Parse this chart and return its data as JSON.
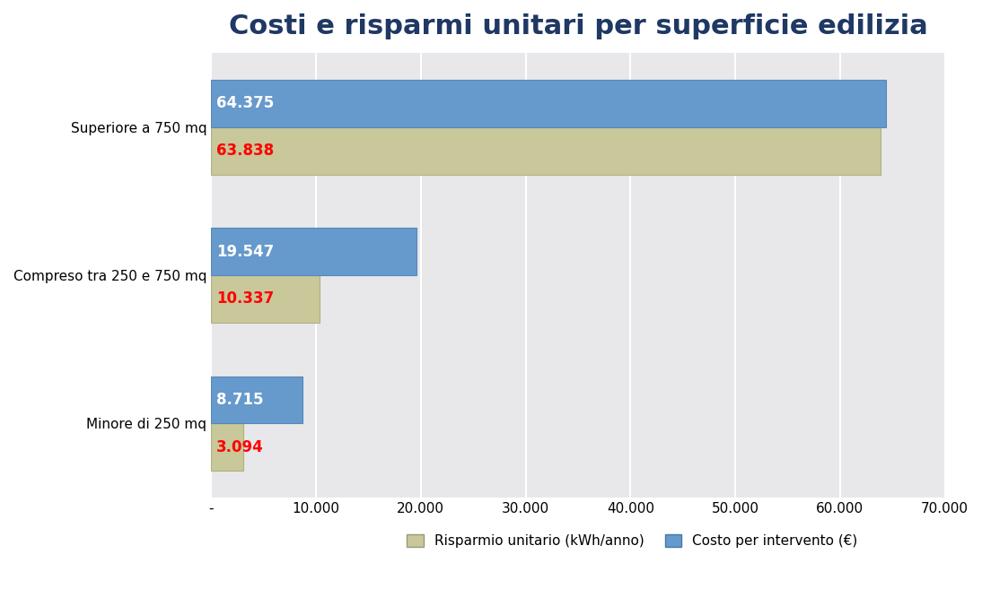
{
  "title": "Costi e risparmi unitari per superficie edilizia",
  "categories": [
    "Superiore a 750 mq",
    "Compreso tra 250 e 750 mq",
    "Minore di 250 mq"
  ],
  "risparmio": [
    63838,
    10337,
    3094
  ],
  "costo": [
    64375,
    19547,
    8715
  ],
  "risparmio_labels": [
    "63.838",
    "10.337",
    "3.094"
  ],
  "costo_labels": [
    "64.375",
    "19.547",
    "8.715"
  ],
  "risparmio_color": "#C8C89A",
  "costo_color": "#6699CC",
  "risparmio_label_color": "#FF0000",
  "costo_label_color": "#FFFFFF",
  "title_color": "#1F3864",
  "background_color": "#E8E8EB",
  "xlim": [
    0,
    70000
  ],
  "xticks": [
    0,
    10000,
    20000,
    30000,
    40000,
    50000,
    60000,
    70000
  ],
  "xtick_labels": [
    "-",
    "10.000",
    "20.000",
    "30.000",
    "40.000",
    "50.000",
    "60.000",
    "70.000"
  ],
  "legend_risparmio": "Risparmio unitario (kWh/anno)",
  "legend_costo": "Costo per intervento (€)",
  "bar_height": 0.32,
  "title_fontsize": 22,
  "tick_fontsize": 11,
  "label_fontsize": 12,
  "legend_fontsize": 11,
  "ytick_fontsize": 11
}
